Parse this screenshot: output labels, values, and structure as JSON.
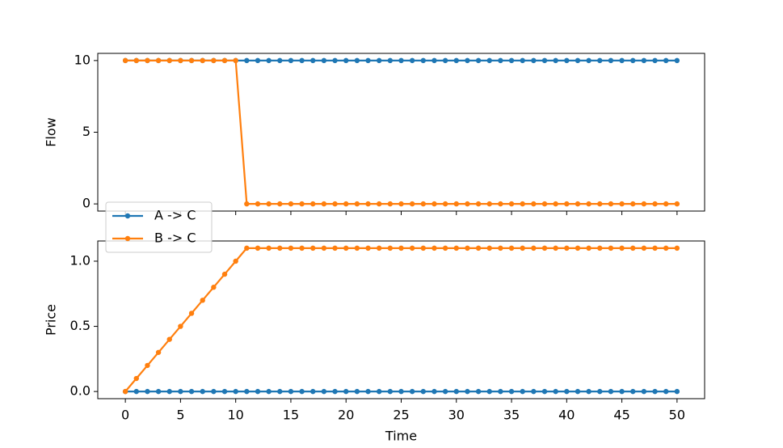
{
  "chart_data": [
    {
      "type": "line",
      "ylabel": "Flow",
      "x": [
        0,
        1,
        2,
        3,
        4,
        5,
        6,
        7,
        8,
        9,
        10,
        11,
        12,
        13,
        14,
        15,
        16,
        17,
        18,
        19,
        20,
        21,
        22,
        23,
        24,
        25,
        26,
        27,
        28,
        29,
        30,
        31,
        32,
        33,
        34,
        35,
        36,
        37,
        38,
        39,
        40,
        41,
        42,
        43,
        44,
        45,
        46,
        47,
        48,
        49,
        50
      ],
      "xlim": [
        -2.5,
        52.5
      ],
      "ylim": [
        -0.5,
        10.5
      ],
      "yticks": [
        0,
        5,
        10
      ],
      "series": [
        {
          "color": "#1f77b4",
          "values": [
            10,
            10,
            10,
            10,
            10,
            10,
            10,
            10,
            10,
            10,
            10,
            10,
            10,
            10,
            10,
            10,
            10,
            10,
            10,
            10,
            10,
            10,
            10,
            10,
            10,
            10,
            10,
            10,
            10,
            10,
            10,
            10,
            10,
            10,
            10,
            10,
            10,
            10,
            10,
            10,
            10,
            10,
            10,
            10,
            10,
            10,
            10,
            10,
            10,
            10,
            10
          ]
        },
        {
          "color": "#ff7f0e",
          "values": [
            10,
            10,
            10,
            10,
            10,
            10,
            10,
            10,
            10,
            10,
            10,
            0,
            0,
            0,
            0,
            0,
            0,
            0,
            0,
            0,
            0,
            0,
            0,
            0,
            0,
            0,
            0,
            0,
            0,
            0,
            0,
            0,
            0,
            0,
            0,
            0,
            0,
            0,
            0,
            0,
            0,
            0,
            0,
            0,
            0,
            0,
            0,
            0,
            0,
            0,
            0
          ]
        }
      ]
    },
    {
      "type": "line",
      "ylabel": "Price",
      "xlabel": "Time",
      "x": [
        0,
        1,
        2,
        3,
        4,
        5,
        6,
        7,
        8,
        9,
        10,
        11,
        12,
        13,
        14,
        15,
        16,
        17,
        18,
        19,
        20,
        21,
        22,
        23,
        24,
        25,
        26,
        27,
        28,
        29,
        30,
        31,
        32,
        33,
        34,
        35,
        36,
        37,
        38,
        39,
        40,
        41,
        42,
        43,
        44,
        45,
        46,
        47,
        48,
        49,
        50
      ],
      "xlim": [
        -2.5,
        52.5
      ],
      "xticks": [
        0,
        5,
        10,
        15,
        20,
        25,
        30,
        35,
        40,
        45,
        50
      ],
      "ylim": [
        -0.055,
        1.155
      ],
      "yticks": [
        {
          "value": 0,
          "label": "0.0"
        },
        {
          "value": 0.5,
          "label": "0.5"
        },
        {
          "value": 1,
          "label": "1.0"
        }
      ],
      "legend": "upper left",
      "series": [
        {
          "name": "A -> C",
          "color": "#1f77b4",
          "values": [
            0,
            0,
            0,
            0,
            0,
            0,
            0,
            0,
            0,
            0,
            0,
            0,
            0,
            0,
            0,
            0,
            0,
            0,
            0,
            0,
            0,
            0,
            0,
            0,
            0,
            0,
            0,
            0,
            0,
            0,
            0,
            0,
            0,
            0,
            0,
            0,
            0,
            0,
            0,
            0,
            0,
            0,
            0,
            0,
            0,
            0,
            0,
            0,
            0,
            0,
            0
          ]
        },
        {
          "name": "B -> C",
          "color": "#ff7f0e",
          "values": [
            0,
            0.1,
            0.2,
            0.3,
            0.4,
            0.5,
            0.6,
            0.7,
            0.8,
            0.9,
            1.0,
            1.1,
            1.1,
            1.1,
            1.1,
            1.1,
            1.1,
            1.1,
            1.1,
            1.1,
            1.1,
            1.1,
            1.1,
            1.1,
            1.1,
            1.1,
            1.1,
            1.1,
            1.1,
            1.1,
            1.1,
            1.1,
            1.1,
            1.1,
            1.1,
            1.1,
            1.1,
            1.1,
            1.1,
            1.1,
            1.1,
            1.1,
            1.1,
            1.1,
            1.1,
            1.1,
            1.1,
            1.1,
            1.1,
            1.1,
            1.1
          ]
        }
      ]
    }
  ]
}
